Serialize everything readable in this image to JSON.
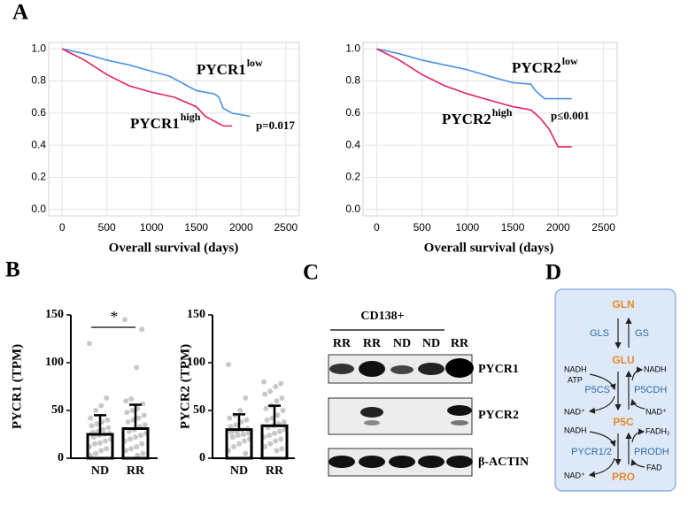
{
  "panel_labels": [
    "A",
    "B",
    "C",
    "D"
  ],
  "chart_data": [
    {
      "type": "line",
      "xlabel": "Overall survival (days)",
      "xlim": [
        -150,
        2650
      ],
      "ylim": [
        -0.04,
        1.04
      ],
      "xticks": [
        0,
        500,
        1000,
        1500,
        2000,
        2500
      ],
      "yticks": [
        {
          "value": 0,
          "label": "0.0"
        },
        0.2,
        0.4,
        0.6,
        0.8,
        {
          "value": 1,
          "label": "1.0"
        }
      ],
      "grid": true,
      "series": [
        {
          "name": "PYCR1",
          "superscript": "low",
          "color": "#4a90e2",
          "x": [
            0,
            250,
            500,
            750,
            1000,
            1200,
            1300,
            1400,
            1500,
            1700,
            1750,
            1800,
            1900,
            2100
          ],
          "values": [
            1,
            0.97,
            0.93,
            0.9,
            0.86,
            0.83,
            0.8,
            0.77,
            0.74,
            0.72,
            0.7,
            0.63,
            0.6,
            0.58
          ]
        },
        {
          "name": "PYCR1",
          "superscript": "high",
          "color": "#e0245e",
          "x": [
            0,
            250,
            500,
            750,
            1000,
            1250,
            1500,
            1600,
            1700,
            1800,
            1900
          ],
          "values": [
            1,
            0.93,
            0.84,
            0.77,
            0.73,
            0.7,
            0.64,
            0.58,
            0.55,
            0.52,
            0.52
          ]
        }
      ],
      "annotation": "p=0.017"
    },
    {
      "type": "line",
      "xlabel": "Overall survival (days)",
      "xlim": [
        -150,
        2650
      ],
      "ylim": [
        -0.04,
        1.04
      ],
      "xticks": [
        0,
        500,
        1000,
        1500,
        2000,
        2500
      ],
      "yticks": [
        {
          "value": 0,
          "label": "0.0"
        },
        0.2,
        0.4,
        0.6,
        0.8,
        {
          "value": 1,
          "label": "1.0"
        }
      ],
      "grid": true,
      "series": [
        {
          "name": "PYCR2",
          "superscript": "low",
          "color": "#4a90e2",
          "x": [
            0,
            250,
            500,
            750,
            1000,
            1300,
            1500,
            1700,
            1750,
            1850,
            2150
          ],
          "values": [
            1,
            0.97,
            0.93,
            0.9,
            0.87,
            0.82,
            0.79,
            0.78,
            0.74,
            0.69,
            0.69
          ]
        },
        {
          "name": "PYCR2",
          "superscript": "high",
          "color": "#e0245e",
          "x": [
            0,
            250,
            500,
            750,
            1000,
            1250,
            1500,
            1700,
            1800,
            1900,
            2000,
            2150
          ],
          "values": [
            1,
            0.93,
            0.84,
            0.77,
            0.72,
            0.68,
            0.64,
            0.62,
            0.57,
            0.5,
            0.39,
            0.39
          ]
        }
      ],
      "annotation": "p≤0.001"
    },
    {
      "type": "bar",
      "ylabel": "PYCR1 (TPM)",
      "categories": [
        "ND",
        "RR"
      ],
      "values": [
        25,
        31
      ],
      "errors": [
        20,
        25
      ],
      "points": [
        [
          120,
          63,
          55,
          50,
          42,
          40,
          38,
          36,
          34,
          32,
          30,
          28,
          27,
          26,
          25,
          24,
          22,
          20,
          18,
          16,
          15,
          12,
          10,
          8,
          5,
          3
        ],
        [
          145,
          135,
          95,
          62,
          60,
          57,
          52,
          50,
          48,
          45,
          42,
          40,
          38,
          35,
          33,
          30,
          28,
          26,
          24,
          22,
          20,
          18,
          15,
          12,
          10,
          8,
          5,
          3
        ]
      ],
      "ylim": [
        0,
        150
      ],
      "yticks": [
        0,
        50,
        100,
        150
      ],
      "significance": "*",
      "color": "#000000",
      "point_color": "#c8c8c8"
    },
    {
      "type": "bar",
      "ylabel": "PYCR2 (TPM)",
      "categories": [
        "ND",
        "RR"
      ],
      "values": [
        30,
        34
      ],
      "errors": [
        16,
        21
      ],
      "points": [
        [
          98,
          63,
          50,
          45,
          42,
          40,
          38,
          35,
          33,
          31,
          30,
          28,
          27,
          26,
          25,
          24,
          22,
          20,
          18,
          15,
          12,
          8,
          5
        ],
        [
          80,
          78,
          75,
          70,
          67,
          63,
          60,
          55,
          52,
          50,
          45,
          42,
          40,
          38,
          36,
          34,
          32,
          30,
          28,
          26,
          24,
          22,
          20,
          18,
          15,
          12,
          10,
          8
        ]
      ],
      "ylim": [
        0,
        150
      ],
      "yticks": [
        0,
        50,
        100,
        150
      ],
      "color": "#000000",
      "point_color": "#c8c8c8"
    }
  ],
  "blot": {
    "group": "CD138+",
    "lanes": [
      "RR",
      "RR",
      "ND",
      "ND",
      "RR"
    ],
    "rows": [
      "PYCR1",
      "PYCR2",
      "β-ACTIN"
    ]
  },
  "pathway": {
    "nodes": [
      "GLN",
      "GLU",
      "P5C",
      "PRO"
    ],
    "enzymes": [
      "GLS",
      "GS",
      "P5CS",
      "P5CDH",
      "PYCR1/2",
      "PRODH"
    ],
    "cofactors": [
      "NADH",
      "ATP",
      "NADH",
      "NAD⁺",
      "NAD⁺",
      "NADH",
      "FADH₂",
      "FAD",
      "NAD⁺"
    ]
  }
}
